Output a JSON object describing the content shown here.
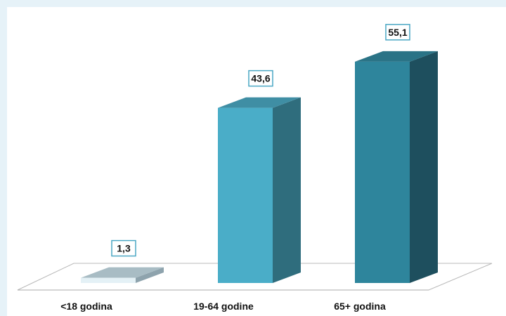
{
  "chart_data": {
    "type": "bar",
    "style": "3d-column",
    "categories": [
      "<18 godina",
      "19-64 godine",
      "65+ godina"
    ],
    "values": [
      1.3,
      43.6,
      55.1
    ],
    "value_labels": [
      "1,3",
      "43,6",
      "55,1"
    ],
    "ylim": [
      0,
      60
    ],
    "grid": false,
    "legend": "none",
    "colors": {
      "series": [
        {
          "front": "#e4f1f6",
          "side": "#8ea3ad",
          "top": "#a8bcc4"
        },
        {
          "front": "#4aadc8",
          "side": "#2f6d7d",
          "top": "#3f8ea4"
        },
        {
          "front": "#2e859c",
          "side": "#1e4f5e",
          "top": "#2a7386"
        }
      ],
      "label_border": "#4aa7c4",
      "floor_line": "#b8b8b8"
    }
  }
}
